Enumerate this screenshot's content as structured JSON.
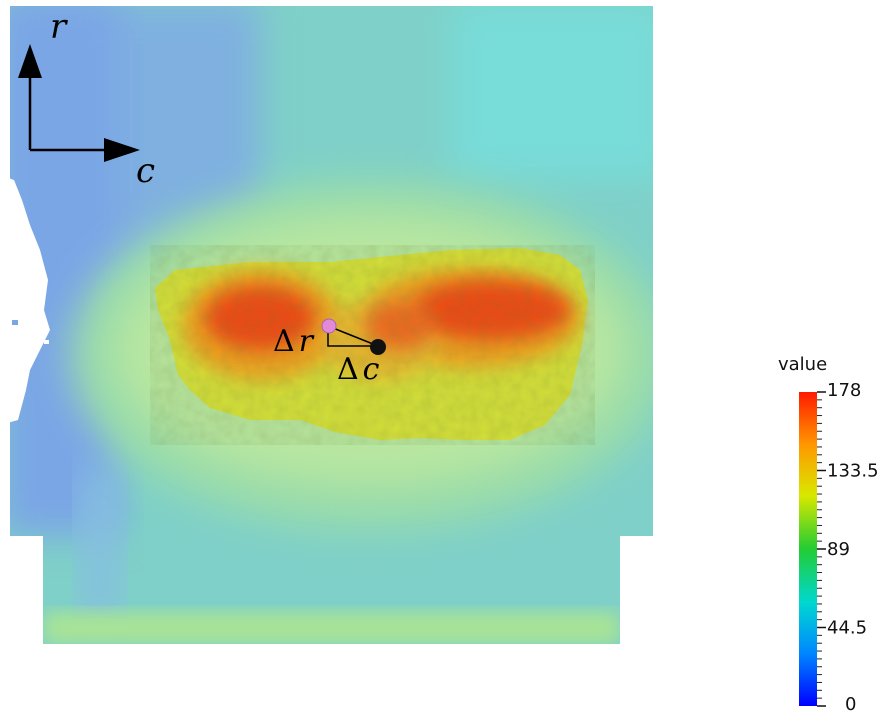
{
  "chart_data": {
    "type": "heatmap",
    "title": "",
    "colorbar": {
      "title": "value",
      "range": [
        0,
        178
      ],
      "tick_values": [
        178,
        133.5,
        89,
        44.5,
        0
      ],
      "tick_labels": [
        "178",
        "133.5",
        "89",
        "44.5",
        "0"
      ],
      "colors": [
        "#0000ff",
        "#00aaff",
        "#00e0a0",
        "#22cc22",
        "#e0e800",
        "#ffaa00",
        "#ff2200"
      ]
    },
    "axes": {
      "r_label": "r",
      "c_label": "c"
    },
    "annotations": {
      "delta_r": "r",
      "delta_c": "c",
      "delta_symbol": "Δ"
    },
    "field_values": {
      "background": 60,
      "hot_region_edge": 120,
      "hot_region_core": 172,
      "left_edge_low": 35
    }
  }
}
